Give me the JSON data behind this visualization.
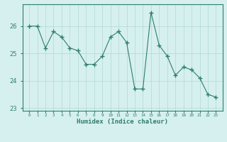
{
  "x": [
    0,
    1,
    2,
    3,
    4,
    5,
    6,
    7,
    8,
    9,
    10,
    11,
    12,
    13,
    14,
    15,
    16,
    17,
    18,
    19,
    20,
    21,
    22,
    23
  ],
  "y": [
    26.0,
    26.0,
    25.2,
    25.8,
    25.6,
    25.2,
    25.1,
    24.6,
    24.6,
    24.9,
    25.6,
    25.8,
    25.4,
    23.7,
    23.7,
    26.5,
    25.3,
    24.9,
    24.2,
    24.5,
    24.4,
    24.1,
    23.5,
    23.4
  ],
  "xlabel": "Humidex (Indice chaleur)",
  "ylim": [
    22.9,
    26.8
  ],
  "yticks": [
    23,
    24,
    25,
    26
  ],
  "bg_color": "#d6f0ef",
  "line_color": "#2e7d6e",
  "grid_color": "#b0d8d4",
  "figsize": [
    3.2,
    2.0
  ],
  "dpi": 100
}
